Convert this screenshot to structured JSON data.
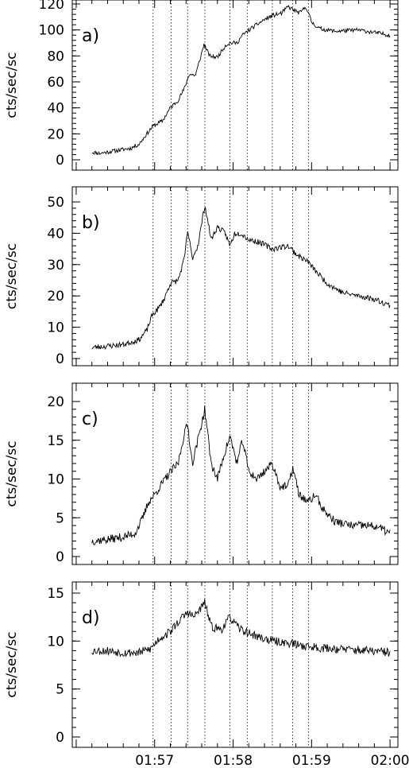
{
  "chart_data": {
    "type": "line",
    "x_tick_labels": [
      "01:57",
      "01:58",
      "01:59",
      "02:00"
    ],
    "x_tick_values_min": [
      117,
      118,
      119,
      120
    ],
    "xlim_min": [
      115.95,
      120.1
    ],
    "vertical_dotted_lines_min": [
      116.98,
      117.21,
      117.42,
      117.64,
      117.96,
      118.18,
      118.5,
      118.76,
      118.96
    ],
    "grid": false,
    "legend": "none",
    "panels": [
      {
        "label": "a)",
        "ylabel": "cts/sec/sc",
        "ylim": [
          0,
          120
        ],
        "yticks": [
          0,
          20,
          40,
          60,
          80,
          100,
          120
        ],
        "x_start": 116.2,
        "x_end": 120.0,
        "noise": 1.6,
        "seed": 11,
        "key_points": [
          [
            116.2,
            6
          ],
          [
            116.3,
            5
          ],
          [
            116.5,
            7
          ],
          [
            116.7,
            9
          ],
          [
            116.8,
            12
          ],
          [
            116.9,
            20
          ],
          [
            116.98,
            26
          ],
          [
            117.1,
            30
          ],
          [
            117.2,
            40
          ],
          [
            117.3,
            46
          ],
          [
            117.38,
            55
          ],
          [
            117.44,
            66
          ],
          [
            117.52,
            65
          ],
          [
            117.58,
            78
          ],
          [
            117.63,
            89
          ],
          [
            117.7,
            80
          ],
          [
            117.8,
            79
          ],
          [
            117.9,
            88
          ],
          [
            117.96,
            90
          ],
          [
            118.05,
            90
          ],
          [
            118.12,
            96
          ],
          [
            118.25,
            102
          ],
          [
            118.4,
            108
          ],
          [
            118.5,
            111
          ],
          [
            118.62,
            113
          ],
          [
            118.7,
            118
          ],
          [
            118.78,
            115
          ],
          [
            118.85,
            113
          ],
          [
            118.93,
            118
          ],
          [
            119.0,
            106
          ],
          [
            119.1,
            101
          ],
          [
            119.3,
            99
          ],
          [
            119.6,
            100
          ],
          [
            119.8,
            98
          ],
          [
            120.0,
            96
          ]
        ]
      },
      {
        "label": "b)",
        "ylabel": "cts/sec/sc",
        "ylim": [
          0,
          50
        ],
        "yticks": [
          0,
          10,
          20,
          30,
          40,
          50
        ],
        "x_start": 116.2,
        "x_end": 120.0,
        "noise": 0.9,
        "seed": 23,
        "key_points": [
          [
            116.2,
            3.5
          ],
          [
            116.4,
            4
          ],
          [
            116.6,
            4.5
          ],
          [
            116.8,
            6
          ],
          [
            116.9,
            9
          ],
          [
            116.97,
            14
          ],
          [
            117.05,
            16
          ],
          [
            117.12,
            19
          ],
          [
            117.2,
            24
          ],
          [
            117.3,
            25
          ],
          [
            117.38,
            32
          ],
          [
            117.42,
            41
          ],
          [
            117.48,
            32
          ],
          [
            117.55,
            36
          ],
          [
            117.64,
            49
          ],
          [
            117.72,
            38
          ],
          [
            117.8,
            42
          ],
          [
            117.9,
            40
          ],
          [
            117.96,
            36
          ],
          [
            118.02,
            40
          ],
          [
            118.1,
            40
          ],
          [
            118.2,
            38
          ],
          [
            118.35,
            37
          ],
          [
            118.5,
            35
          ],
          [
            118.7,
            36
          ],
          [
            118.82,
            33
          ],
          [
            118.95,
            31
          ],
          [
            119.05,
            28
          ],
          [
            119.2,
            24
          ],
          [
            119.4,
            21
          ],
          [
            119.6,
            20
          ],
          [
            119.8,
            19
          ],
          [
            120.0,
            17
          ]
        ]
      },
      {
        "label": "c)",
        "ylabel": "cts/sec/sc",
        "ylim": [
          0,
          20
        ],
        "yticks": [
          0,
          5,
          10,
          15,
          20
        ],
        "x_start": 116.2,
        "x_end": 120.0,
        "noise": 0.55,
        "seed": 37,
        "key_points": [
          [
            116.2,
            2
          ],
          [
            116.4,
            2.2
          ],
          [
            116.6,
            2.5
          ],
          [
            116.75,
            3
          ],
          [
            116.85,
            5
          ],
          [
            116.92,
            7
          ],
          [
            117.0,
            8
          ],
          [
            117.1,
            9.5
          ],
          [
            117.21,
            11
          ],
          [
            117.3,
            12
          ],
          [
            117.38,
            16
          ],
          [
            117.42,
            17
          ],
          [
            117.48,
            12
          ],
          [
            117.55,
            15
          ],
          [
            117.64,
            19
          ],
          [
            117.72,
            12
          ],
          [
            117.8,
            10
          ],
          [
            117.88,
            13
          ],
          [
            117.96,
            15.5
          ],
          [
            118.05,
            12
          ],
          [
            118.12,
            15
          ],
          [
            118.2,
            11
          ],
          [
            118.3,
            10
          ],
          [
            118.4,
            11
          ],
          [
            118.5,
            12
          ],
          [
            118.6,
            9
          ],
          [
            118.7,
            9
          ],
          [
            118.76,
            11.5
          ],
          [
            118.84,
            8
          ],
          [
            118.96,
            7
          ],
          [
            119.05,
            8
          ],
          [
            119.15,
            6
          ],
          [
            119.3,
            4.5
          ],
          [
            119.5,
            4
          ],
          [
            119.7,
            4
          ],
          [
            119.85,
            3.8
          ],
          [
            120.0,
            3
          ]
        ]
      },
      {
        "label": "d)",
        "ylabel": "cts/sec/sc",
        "ylim": [
          0,
          15
        ],
        "yticks": [
          0,
          5,
          10,
          15
        ],
        "x_start": 116.2,
        "x_end": 120.0,
        "noise": 0.45,
        "seed": 53,
        "key_points": [
          [
            116.2,
            9
          ],
          [
            116.4,
            9
          ],
          [
            116.6,
            8.8
          ],
          [
            116.8,
            8.8
          ],
          [
            116.95,
            9.2
          ],
          [
            117.05,
            10.2
          ],
          [
            117.2,
            11
          ],
          [
            117.3,
            12
          ],
          [
            117.42,
            13
          ],
          [
            117.5,
            12.5
          ],
          [
            117.64,
            14
          ],
          [
            117.72,
            11.5
          ],
          [
            117.85,
            11.2
          ],
          [
            117.96,
            12.5
          ],
          [
            118.05,
            11.5
          ],
          [
            118.15,
            11
          ],
          [
            118.3,
            10.5
          ],
          [
            118.5,
            10
          ],
          [
            118.7,
            9.8
          ],
          [
            118.9,
            9.5
          ],
          [
            119.1,
            9.3
          ],
          [
            119.3,
            9.2
          ],
          [
            119.5,
            9.1
          ],
          [
            119.7,
            9
          ],
          [
            120.0,
            8.8
          ]
        ]
      }
    ]
  }
}
